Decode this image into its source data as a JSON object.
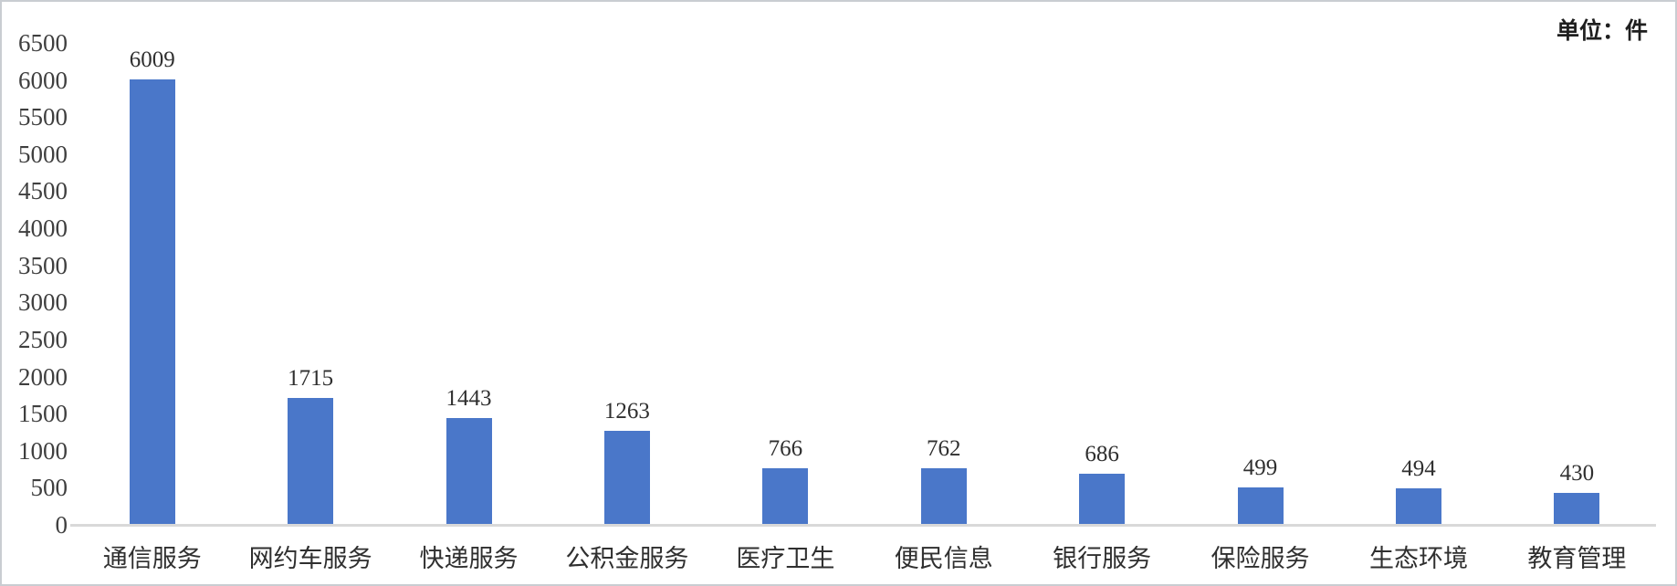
{
  "header": {
    "unit_label": "单位：件"
  },
  "chart_data": {
    "type": "bar",
    "title": "",
    "categories": [
      "通信服务",
      "网约车服务",
      "快递服务",
      "公积金服务",
      "医疗卫生",
      "便民信息",
      "银行服务",
      "保险服务",
      "生态环境",
      "教育管理"
    ],
    "values": [
      6009,
      1715,
      1443,
      1263,
      766,
      762,
      686,
      499,
      494,
      430
    ],
    "xlabel": "",
    "ylabel": "",
    "unit": "件",
    "ylim": [
      0,
      6500
    ],
    "ytick_step": 500,
    "data_labels": true,
    "grid": false,
    "legend": "none"
  },
  "colors": {
    "bar": "#4A77C9",
    "axis_line": "#D9D9D9",
    "tick_text": "#3F3F3F",
    "label_text": "#2F2F2F",
    "frame_border": "#C9CDD2",
    "background": "#FFFFFF"
  }
}
